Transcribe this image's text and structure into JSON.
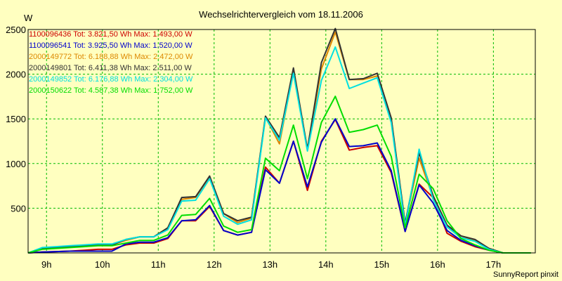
{
  "chart_data": {
    "type": "line",
    "title": "Wechselrichtervergleich vom 18.11.2006",
    "ylabel": "W",
    "footer": "SunnyReport pinxit",
    "ylim": [
      0,
      2500
    ],
    "yticks": [
      500,
      1000,
      1500,
      2000,
      2500
    ],
    "xlim": [
      8.67,
      17.75
    ],
    "xticks": [
      {
        "value": 9,
        "label": "9h"
      },
      {
        "value": 10,
        "label": "10h"
      },
      {
        "value": 11,
        "label": "11h"
      },
      {
        "value": 12,
        "label": "12h"
      },
      {
        "value": 13,
        "label": "13h"
      },
      {
        "value": 14,
        "label": "14h"
      },
      {
        "value": 15,
        "label": "15h"
      },
      {
        "value": 16,
        "label": "16h"
      },
      {
        "value": 17,
        "label": "17h"
      }
    ],
    "grid": true,
    "legend_position": "top-left",
    "x": [
      8.67,
      8.92,
      9.17,
      9.42,
      9.67,
      9.92,
      10.17,
      10.42,
      10.67,
      10.92,
      11.17,
      11.42,
      11.67,
      11.92,
      12.17,
      12.42,
      12.67,
      12.92,
      13.17,
      13.42,
      13.67,
      13.92,
      14.17,
      14.42,
      14.67,
      14.92,
      15.17,
      15.42,
      15.67,
      15.92,
      16.17,
      16.42,
      16.67,
      16.92,
      17.17,
      17.42,
      17.67
    ],
    "series": [
      {
        "name": "1100096436 Tot: 3.821,50 Wh Max: 1.493,00 W",
        "color": "#cc0000",
        "values": [
          0,
          10,
          15,
          20,
          30,
          40,
          40,
          90,
          110,
          110,
          160,
          360,
          360,
          520,
          250,
          200,
          230,
          960,
          780,
          1250,
          700,
          1250,
          1493,
          1150,
          1180,
          1200,
          900,
          240,
          770,
          620,
          220,
          130,
          70,
          30,
          0,
          0,
          0
        ]
      },
      {
        "name": "1100096541 Tot: 3.925,50 Wh Max: 1.520,00 W",
        "color": "#0000cc",
        "values": [
          0,
          10,
          15,
          20,
          20,
          20,
          20,
          100,
          120,
          120,
          170,
          360,
          370,
          530,
          250,
          200,
          230,
          930,
          780,
          1250,
          740,
          1240,
          1500,
          1190,
          1200,
          1230,
          920,
          240,
          760,
          560,
          250,
          140,
          80,
          30,
          0,
          0,
          0
        ]
      },
      {
        "name": "2000149772 Tot: 6.188,88 Wh Max: 2.472,00 W",
        "color": "#dd8800",
        "values": [
          0,
          50,
          60,
          70,
          80,
          90,
          90,
          140,
          180,
          180,
          280,
          600,
          620,
          850,
          440,
          340,
          390,
          1520,
          1220,
          2040,
          1160,
          2060,
          2472,
          1940,
          1940,
          1980,
          1500,
          320,
          1060,
          620,
          300,
          190,
          140,
          50,
          0,
          0,
          0
        ]
      },
      {
        "name": "2000149801 Tot: 6.411,38 Wh Max: 2.511,00 W",
        "color": "#333333",
        "values": [
          0,
          50,
          60,
          70,
          80,
          90,
          90,
          150,
          180,
          180,
          280,
          620,
          630,
          860,
          440,
          360,
          400,
          1530,
          1290,
          2070,
          1160,
          2130,
          2511,
          1940,
          1950,
          2010,
          1510,
          330,
          1120,
          640,
          310,
          190,
          150,
          50,
          0,
          0,
          0
        ]
      },
      {
        "name": "2000149852 Tot: 6.176,88 Wh Max: 2.304,00 W",
        "color": "#00e0e0",
        "values": [
          0,
          60,
          70,
          80,
          90,
          100,
          100,
          150,
          180,
          180,
          260,
          580,
          590,
          830,
          410,
          320,
          370,
          1510,
          1260,
          2010,
          1140,
          1930,
          2304,
          1840,
          1900,
          1960,
          1460,
          300,
          1160,
          600,
          290,
          170,
          130,
          40,
          0,
          0,
          0
        ]
      },
      {
        "name": "2000150622 Tot: 4.587,38 Wh Max: 1.752,00 W",
        "color": "#00dd00",
        "values": [
          0,
          40,
          50,
          60,
          70,
          80,
          80,
          110,
          140,
          140,
          200,
          420,
          430,
          610,
          300,
          230,
          260,
          1060,
          920,
          1430,
          830,
          1460,
          1752,
          1350,
          1380,
          1430,
          1080,
          280,
          880,
          720,
          360,
          160,
          90,
          30,
          0,
          0,
          0
        ]
      }
    ]
  }
}
